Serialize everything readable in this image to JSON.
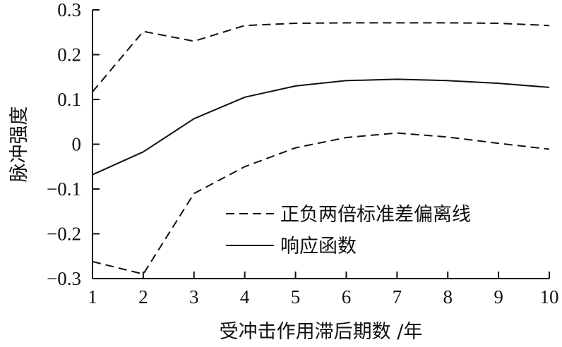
{
  "chart_data": {
    "type": "line",
    "title": "",
    "xlabel": "受冲击作用滞后期数 /年",
    "ylabel": "脉冲强度",
    "x": [
      1,
      2,
      3,
      4,
      5,
      6,
      7,
      8,
      9,
      10
    ],
    "xlim": [
      1,
      10
    ],
    "ylim": [
      -0.3,
      0.3
    ],
    "x_ticks": [
      "1",
      "2",
      "3",
      "4",
      "5",
      "6",
      "7",
      "8",
      "9",
      "10"
    ],
    "y_ticks": [
      {
        "value": 0.3,
        "label": "0.3"
      },
      {
        "value": 0.2,
        "label": "0.2"
      },
      {
        "value": 0.1,
        "label": "0.1"
      },
      {
        "value": 0,
        "label": "0"
      },
      {
        "value": -0.1,
        "label": "−0.1"
      },
      {
        "value": -0.2,
        "label": "−0.2"
      },
      {
        "value": -0.3,
        "label": "−0.3"
      }
    ],
    "grid": false,
    "legend_position": "bottom-right",
    "series": [
      {
        "name": "正负两倍标准差偏离线",
        "style": "dashed",
        "color": "#111111",
        "values": [
          0.117,
          0.252,
          0.23,
          0.265,
          0.27,
          0.271,
          0.271,
          0.271,
          0.27,
          0.265
        ]
      },
      {
        "name": "正负两倍标准差偏离线",
        "style": "dashed",
        "color": "#111111",
        "legend": false,
        "values": [
          -0.262,
          -0.29,
          -0.11,
          -0.05,
          -0.008,
          0.015,
          0.025,
          0.016,
          0.002,
          -0.011
        ]
      },
      {
        "name": "响应函数",
        "style": "solid",
        "color": "#111111",
        "values": [
          -0.068,
          -0.017,
          0.057,
          0.105,
          0.13,
          0.142,
          0.145,
          0.142,
          0.136,
          0.127
        ]
      }
    ]
  }
}
